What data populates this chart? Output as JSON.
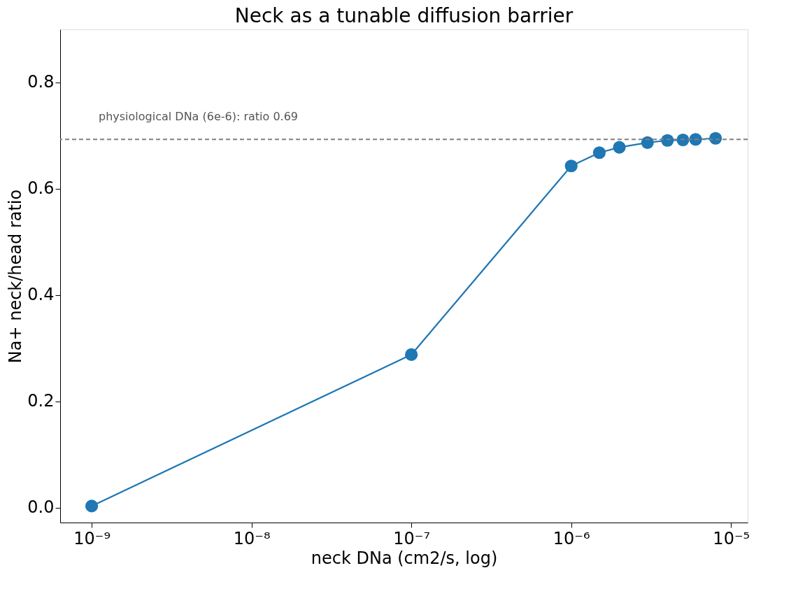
{
  "chart_data": {
    "type": "line",
    "title": "Neck as a tunable diffusion barrier",
    "xlabel": "neck DNa (cm2/s, log)",
    "ylabel": "Na+ neck/head ratio",
    "x": [
      1e-09,
      1e-07,
      1e-06,
      1.5e-06,
      2e-06,
      3e-06,
      4e-06,
      5e-06,
      6e-06,
      8e-06
    ],
    "series": [
      {
        "color": "#1f77b4",
        "values": [
          0.003,
          0.288,
          0.643,
          0.668,
          0.678,
          0.687,
          0.691,
          0.692,
          0.693,
          0.695
        ]
      }
    ],
    "log": "x",
    "marker": "circle",
    "line_style": "solid",
    "grid": false,
    "xlim": [
      6.35e-10,
      1.27e-05
    ],
    "ylim": [
      -0.028,
      0.9
    ],
    "xticks": [
      {
        "value": 1e-09,
        "label": "10⁻⁹"
      },
      {
        "value": 1e-08,
        "label": "10⁻⁸"
      },
      {
        "value": 1e-07,
        "label": "10⁻⁷"
      },
      {
        "value": 1e-06,
        "label": "10⁻⁶"
      },
      {
        "value": 1e-05,
        "label": "10⁻⁵"
      }
    ],
    "yticks": [
      {
        "value": 0,
        "label": "0.0"
      },
      {
        "value": 0.2,
        "label": "0.2"
      },
      {
        "value": 0.4,
        "label": "0.4"
      },
      {
        "value": 0.6,
        "label": "0.6"
      },
      {
        "value": 0.8,
        "label": "0.8"
      }
    ],
    "ref_lines": [
      {
        "axis": "y",
        "value": 0.693,
        "color": "#808080",
        "line_style": "dashed"
      }
    ],
    "annotations": [
      "physiological DNa (6e-6): ratio 0.69"
    ]
  }
}
